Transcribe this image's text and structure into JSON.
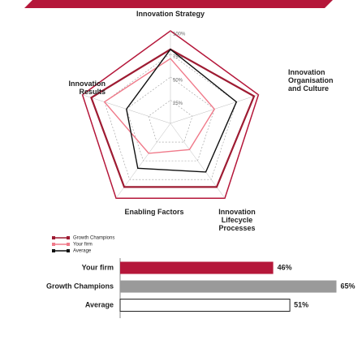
{
  "chart_data": [
    {
      "type": "radar",
      "categories": [
        "Innovation Strategy",
        "Innovation Organisation and Culture",
        "Innovation Lifecycle Processes",
        "Enabling Factors",
        "Innovation Results"
      ],
      "rlim": [
        0,
        100
      ],
      "rticks": [
        {
          "value": 25,
          "label": "25%"
        },
        {
          "value": 50,
          "label": "50%"
        },
        {
          "value": 75,
          "label": "75%"
        },
        {
          "value": 100,
          "label": "100%"
        }
      ],
      "series": [
        {
          "name": "Growth Champions",
          "color": "#9e1b32",
          "values": [
            80,
            95,
            85,
            85,
            90
          ]
        },
        {
          "name": "Your firm",
          "color": "#f07a8a",
          "values": [
            70,
            50,
            35,
            40,
            75
          ]
        },
        {
          "name": "Average",
          "color": "#111111",
          "values": [
            80,
            75,
            65,
            60,
            50
          ]
        }
      ]
    },
    {
      "type": "bar",
      "categories": [
        "Your firm",
        "Growth Champions",
        "Average"
      ],
      "values": [
        46,
        65,
        51
      ],
      "value_labels": [
        "46%",
        "65%",
        "51%"
      ],
      "colors": [
        "#b5173a",
        "#9a9a9a",
        "#ffffff"
      ]
    }
  ]
}
